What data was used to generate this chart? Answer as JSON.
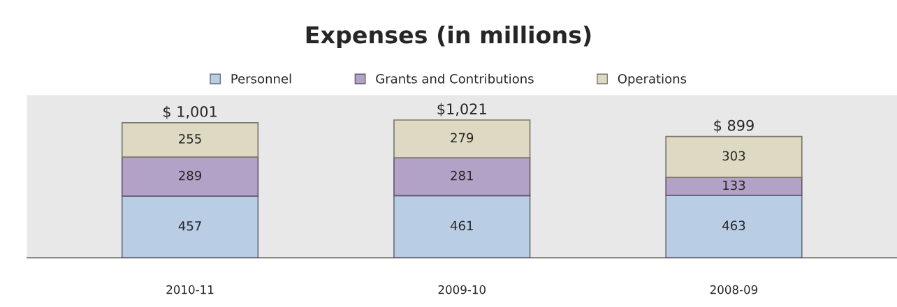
{
  "chart_data": {
    "type": "bar",
    "title": "Expenses (in millions)",
    "stacked": true,
    "data_labels": true,
    "legend": "top",
    "grid": false,
    "categories": [
      "2010-11",
      "2009-10",
      "2008-09"
    ],
    "series": [
      {
        "name": "Personnel",
        "color": "#b9cde5",
        "values": [
          457,
          461,
          463
        ]
      },
      {
        "name": "Grants and Contributions",
        "color": "#b3a2c7",
        "values": [
          289,
          281,
          133
        ]
      },
      {
        "name": "Operations",
        "color": "#ddd9c3",
        "values": [
          255,
          279,
          303
        ]
      }
    ],
    "totals": [
      "$ 1,001",
      "$1,021",
      "$ 899"
    ]
  }
}
